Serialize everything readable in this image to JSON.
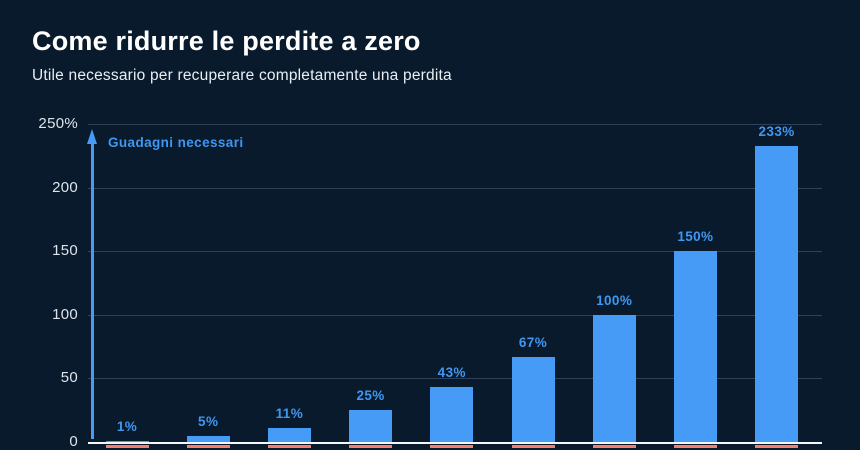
{
  "page": {
    "background_color": "#081a2b"
  },
  "header": {
    "title": "Come ridurre le perdite a zero",
    "subtitle": "Utile necessario per recuperare completamente una perdita"
  },
  "chart_data": {
    "type": "bar",
    "title": "Come ridurre le perdite a zero",
    "subtitle": "Utile necessario per recuperare completamente una perdita",
    "values": [
      1,
      5,
      11,
      25,
      43,
      67,
      100,
      150,
      233
    ],
    "bar_labels": [
      "1%",
      "5%",
      "11%",
      "25%",
      "43%",
      "67%",
      "100%",
      "150%",
      "233%"
    ],
    "annotation": "Guadagni necessari",
    "yticks": [
      {
        "value": 250,
        "label": "250%"
      },
      {
        "value": 200,
        "label": "200"
      },
      {
        "value": 150,
        "label": "150"
      },
      {
        "value": 100,
        "label": "100"
      },
      {
        "value": 50,
        "label": "50"
      },
      {
        "value": 0,
        "label": "0"
      }
    ],
    "ylim": [
      0,
      250
    ],
    "grid": true,
    "legend_position": "none",
    "bar_color": "#469bf7",
    "label_color": "#3f97f2",
    "grid_color": "#31415a",
    "axis_color": "#f5f8fb",
    "loss_strip_color": "#f97e6d",
    "tick_color": "#dde4ec"
  }
}
